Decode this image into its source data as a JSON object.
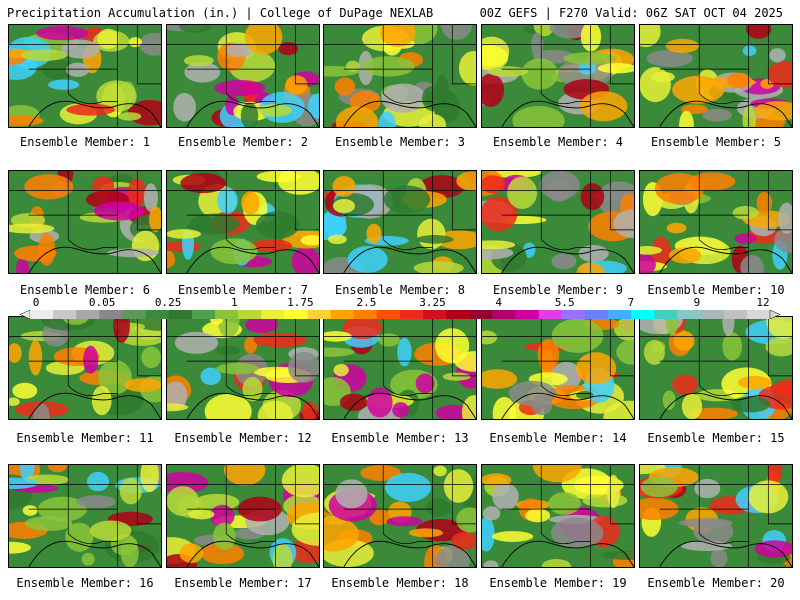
{
  "header": {
    "left": "Precipitation Accumulation (in.) | College of DuPage NEXLAB",
    "right": "00Z GEFS | F270 Valid: 06Z SAT OCT 04 2025"
  },
  "colors": {
    "background": "#ffffff",
    "map_base": "#3a8a3a",
    "border": "#000000"
  },
  "colorbar": {
    "labels": [
      "0",
      "0.05",
      "0.25",
      "1",
      "1.75",
      "2.5",
      "3.25",
      "4",
      "5.5",
      "7",
      "9",
      "12"
    ],
    "colors": [
      "#ececec",
      "#c8c8c8",
      "#a8a8a8",
      "#888888",
      "#5c9a5c",
      "#3a8a3a",
      "#2f7a2f",
      "#4fa14f",
      "#8ac43a",
      "#b9d93a",
      "#e8f03a",
      "#ffff33",
      "#ffd033",
      "#ffa500",
      "#ff7f00",
      "#ff4f00",
      "#ee2a1a",
      "#d0101a",
      "#b00018",
      "#900030",
      "#b00070",
      "#d000a0",
      "#e040e0",
      "#9a70ff",
      "#6a80ff",
      "#40b0ff",
      "#00ffff",
      "#40d0c0",
      "#8ac8c8",
      "#a8b8b8",
      "#c0c0c0",
      "#d8d8d8"
    ]
  },
  "members": [
    {
      "label": "Ensemble Member: 1",
      "icon": "precip-map"
    },
    {
      "label": "Ensemble Member: 2",
      "icon": "precip-map"
    },
    {
      "label": "Ensemble Member: 3",
      "icon": "precip-map"
    },
    {
      "label": "Ensemble Member: 4",
      "icon": "precip-map"
    },
    {
      "label": "Ensemble Member: 5",
      "icon": "precip-map"
    },
    {
      "label": "Ensemble Member: 6",
      "icon": "precip-map"
    },
    {
      "label": "Ensemble Member: 7",
      "icon": "precip-map"
    },
    {
      "label": "Ensemble Member: 8",
      "icon": "precip-map"
    },
    {
      "label": "Ensemble Member: 9",
      "icon": "precip-map"
    },
    {
      "label": "Ensemble Member: 10",
      "icon": "precip-map"
    },
    {
      "label": "Ensemble Member: 11",
      "icon": "precip-map"
    },
    {
      "label": "Ensemble Member: 12",
      "icon": "precip-map"
    },
    {
      "label": "Ensemble Member: 13",
      "icon": "precip-map"
    },
    {
      "label": "Ensemble Member: 14",
      "icon": "precip-map"
    },
    {
      "label": "Ensemble Member: 15",
      "icon": "precip-map"
    },
    {
      "label": "Ensemble Member: 16",
      "icon": "precip-map"
    },
    {
      "label": "Ensemble Member: 17",
      "icon": "precip-map"
    },
    {
      "label": "Ensemble Member: 18",
      "icon": "precip-map"
    },
    {
      "label": "Ensemble Member: 19",
      "icon": "precip-map"
    },
    {
      "label": "Ensemble Member: 20",
      "icon": "precip-map"
    }
  ]
}
